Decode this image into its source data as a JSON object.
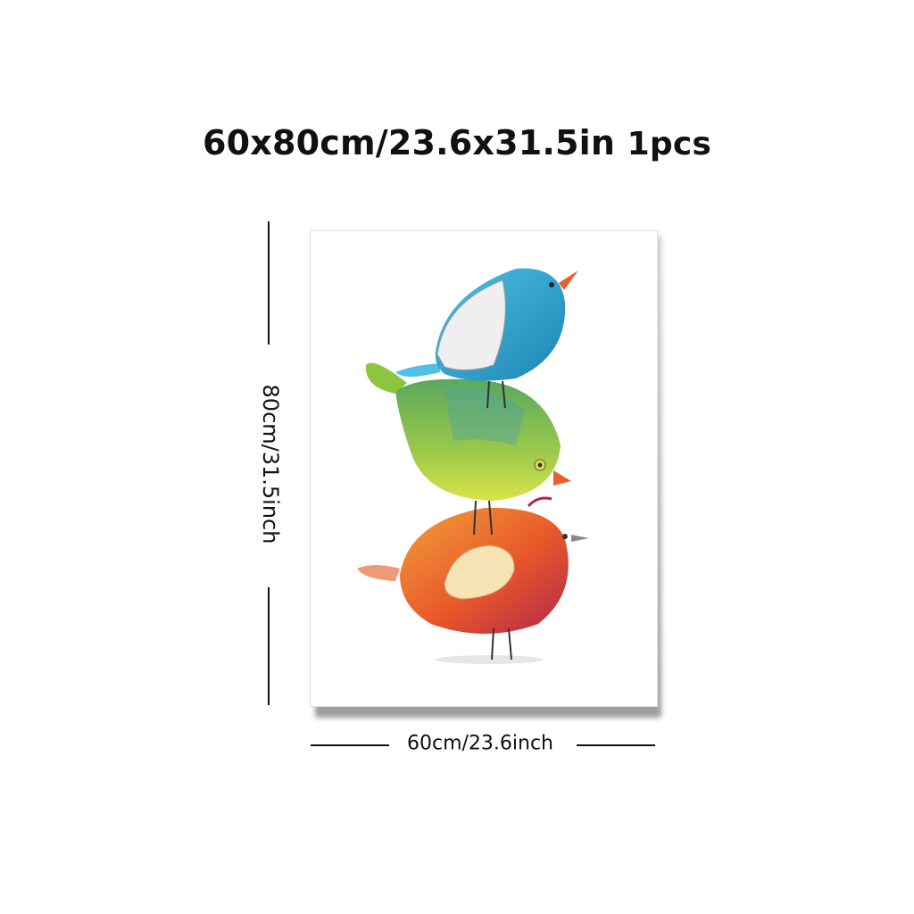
{
  "title": {
    "size_text": "60x80cm/23.6x31.5in",
    "quantity_text": "1pcs"
  },
  "dimensions": {
    "height_label": "80cm/31.5inch",
    "width_label": "60cm/23.6inch"
  },
  "artwork": {
    "subject": "three stacked watercolor birds",
    "colors": {
      "top_bird": "#2aa0c8",
      "middle_bird": "#8cc63f",
      "bottom_bird": "#e8582a",
      "beak": "#e8612c"
    }
  }
}
